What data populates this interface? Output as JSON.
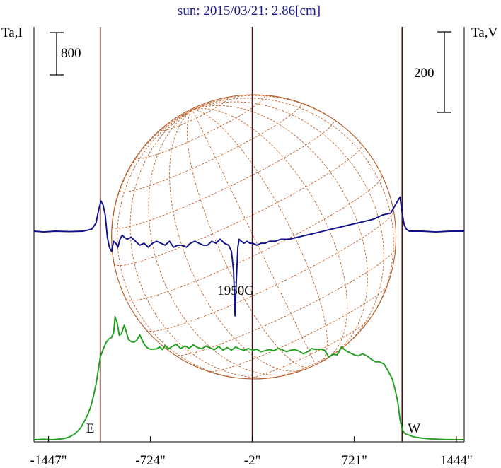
{
  "chart_data": {
    "type": "line",
    "title": "sun: 2015/03/21: 2.86[cm]",
    "left_axis_label": "Ta,I",
    "right_axis_label": "Ta,V",
    "x_unit": "arcsec",
    "x_ticks": [
      {
        "value": -1447,
        "label": "-1447\""
      },
      {
        "value": -724,
        "label": "-724\""
      },
      {
        "value": -2,
        "label": "-2\""
      },
      {
        "value": 721,
        "label": "721\""
      },
      {
        "value": 1444,
        "label": "1444\""
      }
    ],
    "xlim": [
      -1550,
      1500
    ],
    "left_scale_label": "800",
    "left_scale_value": 800,
    "right_scale_label": "200",
    "right_scale_value": 200,
    "limb_markers": [
      {
        "value": -1080,
        "label": "E"
      },
      {
        "value": 1060,
        "label": "W"
      }
    ],
    "center_marker": {
      "value": -2
    },
    "annotation": {
      "text": "1950G",
      "x": -120
    },
    "series": [
      {
        "key": "I",
        "color": "#1ea01e",
        "x": [
          -1550,
          -1480,
          -1420,
          -1380,
          -1340,
          -1300,
          -1260,
          -1220,
          -1190,
          -1170,
          -1150,
          -1130,
          -1110,
          -1095,
          -1080,
          -1060,
          -1040,
          -1020,
          -1000,
          -985,
          -975,
          -960,
          -945,
          -930,
          -910,
          -895,
          -880,
          -860,
          -840,
          -820,
          -800,
          -780,
          -760,
          -740,
          -720,
          -700,
          -680,
          -660,
          -640,
          -620,
          -600,
          -570,
          -540,
          -510,
          -480,
          -450,
          -420,
          -390,
          -360,
          -330,
          -300,
          -270,
          -240,
          -210,
          -180,
          -150,
          -120,
          -90,
          -60,
          -30,
          0,
          30,
          60,
          90,
          120,
          150,
          180,
          210,
          240,
          270,
          300,
          330,
          360,
          390,
          420,
          450,
          480,
          510,
          540,
          570,
          600,
          630,
          660,
          690,
          720,
          750,
          780,
          810,
          840,
          870,
          900,
          930,
          960,
          990,
          1010,
          1030,
          1045,
          1060,
          1075,
          1090,
          1110,
          1130,
          1150,
          1170,
          1190,
          1210,
          1240,
          1280,
          1320,
          1360,
          1400,
          1440,
          1500
        ],
        "y": [
          0,
          10,
          0,
          10,
          20,
          50,
          110,
          220,
          360,
          470,
          600,
          800,
          1050,
          1300,
          1560,
          1700,
          1830,
          1900,
          1930,
          2020,
          2320,
          2200,
          1970,
          2000,
          2160,
          2030,
          1890,
          1850,
          1840,
          1880,
          1980,
          1860,
          1770,
          1720,
          1705,
          1710,
          1715,
          1750,
          1700,
          1780,
          1710,
          1760,
          1800,
          1720,
          1770,
          1725,
          1790,
          1740,
          1715,
          1770,
          1730,
          1700,
          1760,
          1690,
          1740,
          1690,
          1750,
          1710,
          1690,
          1720,
          1690,
          1705,
          1660,
          1680,
          1700,
          1680,
          1720,
          1700,
          1660,
          1690,
          1700,
          1670,
          1620,
          1660,
          1720,
          1700,
          1710,
          1690,
          1560,
          1610,
          1600,
          1750,
          1680,
          1640,
          1600,
          1580,
          1620,
          1580,
          1520,
          1470,
          1470,
          1430,
          1300,
          1150,
          950,
          700,
          380,
          200,
          130,
          100,
          85,
          65,
          50,
          40,
          35,
          25,
          20,
          15,
          8,
          4,
          3,
          2,
          0
        ]
      },
      {
        "key": "V",
        "color": "#10108c",
        "x": [
          -1550,
          -1480,
          -1400,
          -1300,
          -1200,
          -1140,
          -1110,
          -1090,
          -1075,
          -1060,
          -1045,
          -1030,
          -1015,
          -1000,
          -985,
          -970,
          -955,
          -940,
          -925,
          -910,
          -890,
          -860,
          -830,
          -800,
          -770,
          -740,
          -710,
          -680,
          -650,
          -620,
          -590,
          -560,
          -530,
          -500,
          -470,
          -440,
          -410,
          -380,
          -350,
          -320,
          -290,
          -260,
          -230,
          -200,
          -170,
          -150,
          -135,
          -125,
          -115,
          -105,
          -95,
          -80,
          -60,
          -40,
          -20,
          0,
          30,
          60,
          90,
          120,
          160,
          200,
          260,
          320,
          380,
          440,
          500,
          560,
          620,
          680,
          740,
          800,
          860,
          920,
          980,
          1020,
          1045,
          1060,
          1075,
          1090,
          1110,
          1140,
          1200,
          1300,
          1400,
          1500
        ],
        "y": [
          0,
          -2,
          0,
          -1,
          0,
          5,
          20,
          55,
          75,
          65,
          40,
          -15,
          -40,
          -50,
          -25,
          -30,
          -40,
          -20,
          -10,
          -15,
          -20,
          -15,
          -25,
          -35,
          -30,
          -40,
          -30,
          -25,
          -30,
          -35,
          -25,
          -40,
          -35,
          -35,
          -40,
          -30,
          -25,
          -30,
          -35,
          -35,
          -25,
          -30,
          -20,
          -30,
          -35,
          -50,
          -100,
          -210,
          -120,
          -40,
          -20,
          -25,
          -30,
          -25,
          -30,
          -30,
          -35,
          -30,
          -30,
          -25,
          -25,
          -20,
          -20,
          -15,
          -10,
          -5,
          0,
          5,
          10,
          15,
          20,
          25,
          30,
          40,
          45,
          70,
          85,
          45,
          15,
          5,
          0,
          0,
          0,
          -2,
          0,
          0
        ]
      }
    ]
  }
}
